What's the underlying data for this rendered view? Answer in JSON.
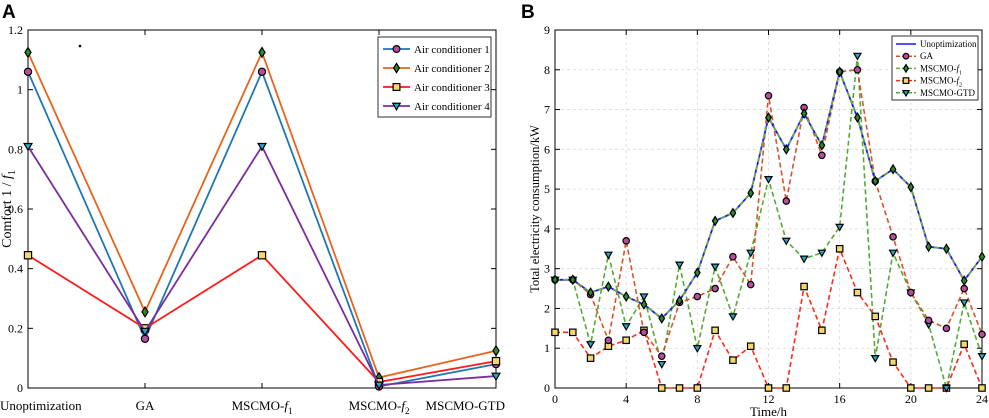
{
  "colors": {
    "ac1": "#1f77b4",
    "ac2": "#e8641c",
    "ac3": "#ff1a1a",
    "ac4": "#7b2d9e",
    "unopt": "#1a1aff",
    "ga": "#d9532a",
    "f1": "#6cae3c",
    "f2": "#ff2a1a",
    "gtd": "#55aa33",
    "marker_purple_fill": "#b84d9e",
    "marker_green_fill": "#2a8a2a",
    "marker_yellow_fill": "#f5d76e",
    "marker_tri_fill": "#2aa3c2"
  },
  "chart_data": [
    {
      "panel": "A",
      "type": "line",
      "title": "",
      "ylabel_main": "Comfort 1 / ",
      "ylabel_f": "f",
      "ylabel_sub": "1",
      "xlabel": "",
      "ylim": [
        0,
        1.2
      ],
      "yticks": [
        0,
        0.2,
        0.4,
        0.6,
        0.8,
        1,
        1.2
      ],
      "ytick_labels": [
        "0",
        "0.2",
        "0.4",
        "0.6",
        "0.8",
        "1",
        "1.2"
      ],
      "categories": [
        {
          "main": "Unoptimization",
          "f": "",
          "sub": ""
        },
        {
          "main": "GA",
          "f": "",
          "sub": ""
        },
        {
          "main": "MSCMO-",
          "f": "f",
          "sub": "1"
        },
        {
          "main": "MSCMO-",
          "f": "f",
          "sub": "2"
        },
        {
          "main": "MSCMO-GTD",
          "f": "",
          "sub": ""
        }
      ],
      "legend_position": "top-right",
      "series": [
        {
          "name": "Air conditioner 1",
          "values": [
            1.06,
            0.165,
            1.06,
            0.005,
            0.08
          ],
          "color_key": "ac1",
          "marker": "circle",
          "marker_fill_key": "marker_purple_fill"
        },
        {
          "name": "Air conditioner 2",
          "values": [
            1.125,
            0.255,
            1.125,
            0.035,
            0.125
          ],
          "color_key": "ac2",
          "marker": "diamond",
          "marker_fill_key": "marker_green_fill"
        },
        {
          "name": "Air conditioner 3",
          "values": [
            0.445,
            0.2,
            0.445,
            0.02,
            0.09
          ],
          "color_key": "ac3",
          "marker": "square",
          "marker_fill_key": "marker_yellow_fill"
        },
        {
          "name": "Air conditioner 4",
          "values": [
            0.81,
            0.19,
            0.81,
            0.01,
            0.04
          ],
          "color_key": "ac4",
          "marker": "triangle-down",
          "marker_fill_key": "marker_tri_fill"
        }
      ]
    },
    {
      "panel": "B",
      "type": "line",
      "title": "",
      "xlabel": "Time/h",
      "ylabel": "Total electricity consumption/kW",
      "xlim": [
        0,
        24
      ],
      "ylim": [
        0,
        9
      ],
      "xticks": [
        0,
        4,
        8,
        12,
        16,
        20,
        24
      ],
      "yticks": [
        0,
        1,
        2,
        3,
        4,
        5,
        6,
        7,
        8,
        9
      ],
      "grid": true,
      "legend_position": "top-right",
      "x": [
        0,
        1,
        2,
        3,
        4,
        5,
        6,
        7,
        8,
        9,
        10,
        11,
        12,
        13,
        14,
        15,
        16,
        17,
        18,
        19,
        20,
        21,
        22,
        23,
        24
      ],
      "series": [
        {
          "name": "Unoptimization",
          "name_main": "Unoptimization",
          "name_f": "",
          "name_sub": "",
          "values": [
            2.72,
            2.72,
            2.4,
            2.55,
            2.3,
            2.1,
            1.75,
            2.2,
            2.9,
            4.2,
            4.4,
            4.9,
            6.8,
            6.0,
            6.9,
            6.1,
            7.95,
            6.8,
            5.2,
            5.5,
            5.05,
            3.55,
            3.5,
            2.7,
            3.3
          ],
          "color_key": "unopt",
          "style": "solid",
          "marker": "none",
          "marker_fill_key": ""
        },
        {
          "name": "GA",
          "name_main": "GA",
          "name_f": "",
          "name_sub": "",
          "values": [
            2.72,
            2.72,
            2.35,
            1.2,
            3.7,
            1.4,
            0.8,
            2.15,
            2.3,
            2.5,
            3.3,
            2.6,
            7.35,
            4.7,
            7.05,
            5.85,
            7.95,
            8.0,
            5.2,
            3.8,
            2.4,
            1.7,
            1.5,
            2.5,
            1.35
          ],
          "color_key": "ga",
          "style": "dashed",
          "marker": "circle",
          "marker_fill_key": "marker_purple_fill"
        },
        {
          "name": "MSCMO-f1",
          "name_main": "MSCMO-",
          "name_f": "f",
          "name_sub": "1",
          "values": [
            2.72,
            2.72,
            2.4,
            2.55,
            2.3,
            2.1,
            1.75,
            2.2,
            2.9,
            4.2,
            4.4,
            4.9,
            6.8,
            6.0,
            6.9,
            6.1,
            7.95,
            6.8,
            5.2,
            5.5,
            5.05,
            3.55,
            3.5,
            2.7,
            3.3
          ],
          "color_key": "f1",
          "style": "dashed",
          "marker": "diamond",
          "marker_fill_key": "marker_green_fill"
        },
        {
          "name": "MSCMO-f2",
          "name_main": "MSCMO-",
          "name_f": "f",
          "name_sub": "2",
          "values": [
            1.4,
            1.4,
            0.75,
            1.05,
            1.2,
            1.45,
            0,
            0,
            0,
            1.45,
            0.7,
            1.05,
            0,
            0,
            2.55,
            1.45,
            3.5,
            2.4,
            1.8,
            0.65,
            0,
            0,
            0,
            1.1,
            0
          ],
          "color_key": "f2",
          "style": "dashed",
          "marker": "square",
          "marker_fill_key": "marker_yellow_fill"
        },
        {
          "name": "MSCMO-GTD",
          "name_main": "MSCMO-GTD",
          "name_f": "",
          "name_sub": "",
          "values": [
            2.72,
            2.72,
            1.1,
            3.35,
            1.55,
            2.3,
            0.6,
            3.1,
            1.0,
            3.05,
            1.8,
            3.4,
            5.25,
            3.7,
            3.25,
            3.4,
            4.05,
            8.35,
            0.75,
            3.4,
            2.4,
            1.6,
            0,
            2.15,
            0.8
          ],
          "color_key": "gtd",
          "style": "dashed",
          "marker": "triangle-down",
          "marker_fill_key": "marker_tri_fill"
        }
      ]
    }
  ]
}
